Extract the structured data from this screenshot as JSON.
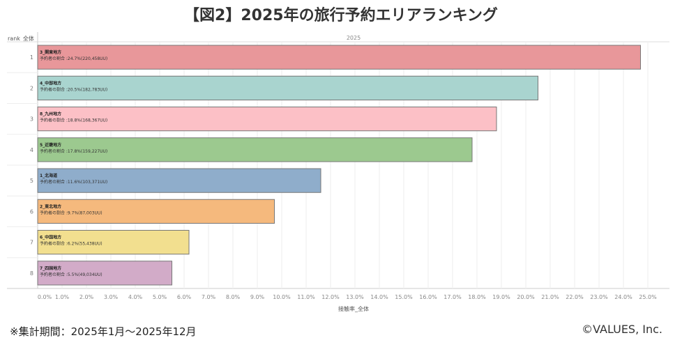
{
  "title": "【図2】2025年の旅行予約エリアランキング",
  "footer": {
    "note": "※集計期間：2025年1月〜2025年12月",
    "credit": "©VALUES, Inc."
  },
  "chart_data": {
    "type": "bar",
    "orientation": "horizontal",
    "row_header": "rank_全体",
    "column_header": "2025",
    "xlabel": "接触率_全体",
    "xlim": [
      0,
      25
    ],
    "x_ticks": [
      "0.0%",
      "1.0%",
      "2.0%",
      "3.0%",
      "4.0%",
      "5.0%",
      "6.0%",
      "7.0%",
      "8.0%",
      "9.0%",
      "10.0%",
      "11.0%",
      "12.0%",
      "13.0%",
      "14.0%",
      "15.0%",
      "16.0%",
      "17.0%",
      "18.0%",
      "19.0%",
      "20.0%",
      "21.0%",
      "22.0%",
      "23.0%",
      "24.0%",
      "25.0%"
    ],
    "grid": true,
    "categories": [
      "1",
      "2",
      "3",
      "4",
      "5",
      "6",
      "7",
      "8"
    ],
    "bars": [
      {
        "rank": "1",
        "region": "3_関東地方",
        "label": "予約者の割合 :24.7%(220,458UU)",
        "value": 24.7,
        "color": "#e8979a"
      },
      {
        "rank": "2",
        "region": "4_中部地方",
        "label": "予約者の割合 :20.5%(182,783UU)",
        "value": 20.5,
        "color": "#a9d4cf"
      },
      {
        "rank": "3",
        "region": "8_九州地方",
        "label": "予約者の割合 :18.8%(168,367UU)",
        "value": 18.8,
        "color": "#fcc0c6"
      },
      {
        "rank": "4",
        "region": "5_近畿地方",
        "label": "予約者の割合 :17.8%(159,227UU)",
        "value": 17.8,
        "color": "#9cc98f"
      },
      {
        "rank": "5",
        "region": "1_北海道",
        "label": "予約者の割合 :11.6%(103,371UU)",
        "value": 11.6,
        "color": "#8fadcb"
      },
      {
        "rank": "6",
        "region": "2_東北地方",
        "label": "予約者の割合 :9.7%(87,003UU)",
        "value": 9.7,
        "color": "#f5b97d"
      },
      {
        "rank": "7",
        "region": "6_中国地方",
        "label": "予約者の割合 :6.2%(55,438UU)",
        "value": 6.2,
        "color": "#f2df8f"
      },
      {
        "rank": "8",
        "region": "7_四国地方",
        "label": "予約者の割合 :5.5%(49,034UU)",
        "value": 5.5,
        "color": "#d2abc8"
      }
    ]
  }
}
